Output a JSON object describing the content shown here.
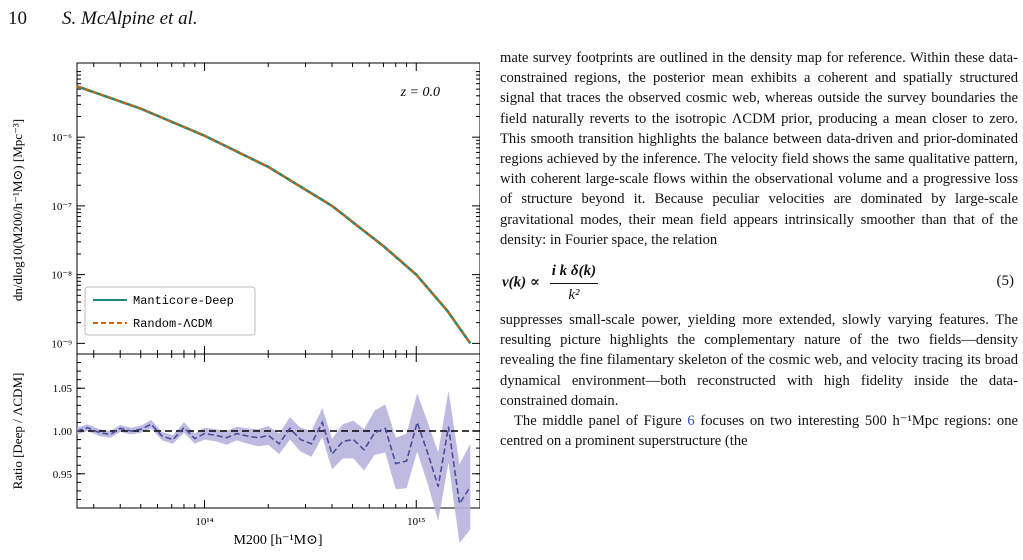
{
  "header": {
    "page_number": "10",
    "authors": "S. McAlpine et al."
  },
  "chart_data": [
    {
      "type": "line",
      "panel": "top",
      "annotation": "z = 0.0",
      "ylabel": "dn/dlog10(M200/h⁻¹M⊙) [Mpc⁻³]",
      "xscale": "log",
      "yscale": "log",
      "xlim": [
        25000000000000.0,
        2000000000000000.0
      ],
      "ylim": [
        7e-10,
        1.2e-05
      ],
      "y_tick_labels": [
        "10⁻⁹",
        "10⁻⁸",
        "10⁻⁷",
        "10⁻⁶"
      ],
      "y_tick_values": [
        1e-09,
        1e-08,
        1e-07,
        1e-06
      ],
      "legend": {
        "placement": "lower-left"
      },
      "x": [
        25000000000000.0,
        50000000000000.0,
        100000000000000.0,
        200000000000000.0,
        400000000000000.0,
        700000000000000.0,
        1000000000000000.0,
        1400000000000000.0,
        1800000000000000.0
      ],
      "series": [
        {
          "name": "Manticore-Deep",
          "color": "#1a8a7a",
          "style": "solid",
          "values": [
            5.5e-06,
            2.6e-06,
            1.05e-06,
            3.7e-07,
            1e-07,
            2.6e-08,
            1e-08,
            3e-09,
            1e-09
          ]
        },
        {
          "name": "Random-ΛCDM",
          "color": "#d95f02",
          "style": "dashed",
          "values": [
            5.5e-06,
            2.6e-06,
            1.05e-06,
            3.7e-07,
            1e-07,
            2.6e-08,
            1e-08,
            3e-09,
            1e-09
          ]
        }
      ]
    },
    {
      "type": "line",
      "panel": "bottom",
      "ylabel": "Ratio [Deep / ΛCDM]",
      "xlabel": "M200 [h⁻¹M⊙]",
      "xscale": "log",
      "xlim": [
        25000000000000.0,
        2000000000000000.0
      ],
      "ylim": [
        0.91,
        1.09
      ],
      "x_tick_labels": [
        "10¹⁴",
        "10¹⁵"
      ],
      "x_tick_values": [
        100000000000000.0,
        1000000000000000.0
      ],
      "y_tick_labels": [
        "0.95",
        "1.00",
        "1.05"
      ],
      "y_tick_values": [
        0.95,
        1.0,
        1.05
      ],
      "reference_line": 1.0,
      "series": [
        {
          "name": "",
          "color": "#4b4e9c",
          "band_color": "#b8b2dd",
          "x": [
            25000000000000.0,
            28000000000000.0,
            32000000000000.0,
            36000000000000.0,
            40000000000000.0,
            45000000000000.0,
            50000000000000.0,
            56000000000000.0,
            63000000000000.0,
            71000000000000.0,
            80000000000000.0,
            90000000000000.0,
            100000000000000.0,
            113000000000000.0,
            127000000000000.0,
            142000000000000.0,
            160000000000000.0,
            180000000000000.0,
            200000000000000.0,
            225000000000000.0,
            253000000000000.0,
            284000000000000.0,
            320000000000000.0,
            360000000000000.0,
            400000000000000.0,
            450000000000000.0,
            505000000000000.0,
            567000000000000.0,
            636000000000000.0,
            714000000000000.0,
            800000000000000.0,
            900000000000000.0,
            1010000000000000.0,
            1130000000000000.0,
            1270000000000000.0,
            1420000000000000.0,
            1600000000000000.0,
            1800000000000000.0
          ],
          "values": [
            1.0,
            1.004,
            0.998,
            0.996,
            1.003,
            1.0,
            1.002,
            1.008,
            0.994,
            0.99,
            1.004,
            0.991,
            0.997,
            0.995,
            0.992,
            0.997,
            0.994,
            0.992,
            0.995,
            0.985,
            1.003,
            0.99,
            0.985,
            1.01,
            0.973,
            0.988,
            0.99,
            0.978,
            0.998,
            1.003,
            0.962,
            0.965,
            1.01,
            0.975,
            0.935,
            1.005,
            0.915,
            0.935
          ],
          "band_halfwidth": [
            0.004,
            0.004,
            0.004,
            0.004,
            0.004,
            0.004,
            0.004,
            0.005,
            0.005,
            0.005,
            0.006,
            0.006,
            0.007,
            0.007,
            0.008,
            0.008,
            0.009,
            0.01,
            0.011,
            0.012,
            0.013,
            0.014,
            0.015,
            0.017,
            0.018,
            0.02,
            0.022,
            0.024,
            0.026,
            0.028,
            0.03,
            0.032,
            0.034,
            0.036,
            0.04,
            0.042,
            0.046,
            0.05
          ]
        }
      ]
    }
  ],
  "text": {
    "p1": "mate survey footprints are outlined in the density map for reference. Within these data-constrained regions, the posterior mean exhibits a coherent and spatially structured signal that traces the observed cosmic web, whereas outside the survey boundaries the field naturally reverts to the isotropic ΛCDM prior, producing a mean closer to zero. This smooth transition highlights the balance between data-driven and prior-dominated regions achieved by the inference. The velocity field shows the same qualitative pattern, with coherent large-scale flows within the observational volume and a progressive loss of structure beyond it. Because peculiar velocities are dominated by large-scale gravitational modes, their mean field appears intrinsically smoother than that of the density: in Fourier space, the relation",
    "eq_lhs": "v(k) ∝",
    "eq_num": "i k δ(k)",
    "eq_den": "k²",
    "eq_number": "(5)",
    "p2": "suppresses small-scale power, yielding more extended, slowly varying features. The resulting picture highlights the complementary nature of the two fields—density revealing the fine filamentary skeleton of the cosmic web, and velocity tracing its broad dynamical environment—both reconstructed with high fidelity inside the data-constrained domain.",
    "p3_start": "The middle panel of Figure ",
    "p3_link": "6",
    "p3_rest": " focuses on two interesting 500 h⁻¹Mpc regions: one centred on a prominent superstructure (the"
  }
}
